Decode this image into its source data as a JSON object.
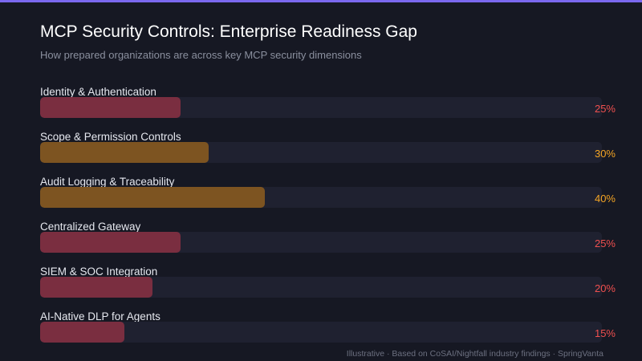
{
  "colors": {
    "accent_bar": "#7b68ee",
    "red_fill": "#7a2e40",
    "amber_fill": "#7d5421",
    "red_text": "#f0504f",
    "amber_text": "#f5a524",
    "track": "#1f2130"
  },
  "footer": "Illustrative · Based on CoSAI/Nightfall industry findings · SpringVanta",
  "chart_data": {
    "type": "bar",
    "orientation": "horizontal",
    "title": "MCP Security Controls: Enterprise Readiness Gap",
    "subtitle": "How prepared organizations are across key MCP security dimensions",
    "xlim": [
      0,
      100
    ],
    "grid": false,
    "categories": [
      "Identity & Authentication",
      "Scope & Permission Controls",
      "Audit Logging & Traceability",
      "Centralized Gateway",
      "SIEM & SOC Integration",
      "AI-Native DLP for Agents"
    ],
    "values": [
      25,
      30,
      40,
      25,
      20,
      15
    ],
    "value_labels": [
      "25%",
      "30%",
      "40%",
      "25%",
      "20%",
      "15%"
    ],
    "bar_colors": [
      "#7a2e40",
      "#7d5421",
      "#7d5421",
      "#7a2e40",
      "#7a2e40",
      "#7a2e40"
    ],
    "label_colors": [
      "#f0504f",
      "#f5a524",
      "#f5a524",
      "#f0504f",
      "#f0504f",
      "#f0504f"
    ]
  }
}
